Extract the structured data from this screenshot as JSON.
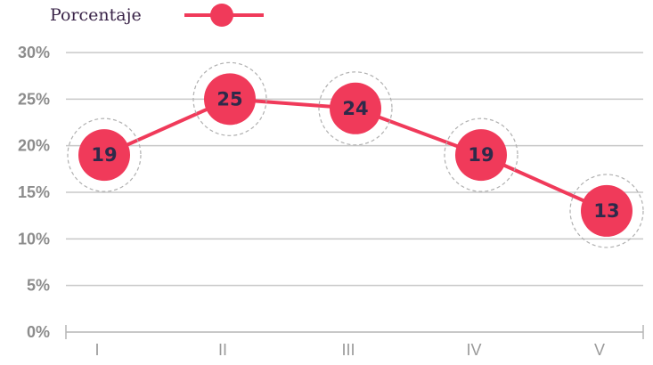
{
  "legend": {
    "label": "Porcentaje"
  },
  "colors": {
    "line": "#f03a5a",
    "marker": "#f03a5a",
    "grid": "#c8c8c8",
    "halo": "#b0b0b0",
    "label_text": "#2e2a4a"
  },
  "chart_data": {
    "type": "line",
    "title": "",
    "xlabel": "",
    "ylabel": "",
    "categories": [
      "I",
      "II",
      "III",
      "IV",
      "V"
    ],
    "series": [
      {
        "name": "Porcentaje",
        "values": [
          19,
          25,
          24,
          19,
          13
        ]
      }
    ],
    "data_labels": [
      "19",
      "25",
      "24",
      "19",
      "13"
    ],
    "yticks": [
      0,
      5,
      10,
      15,
      20,
      25,
      30
    ],
    "ytick_labels": [
      "0%",
      "5%",
      "10%",
      "15%",
      "20%",
      "25%",
      "30%"
    ],
    "ylim": [
      0,
      30
    ],
    "grid": true,
    "legend_position": "top-left"
  }
}
